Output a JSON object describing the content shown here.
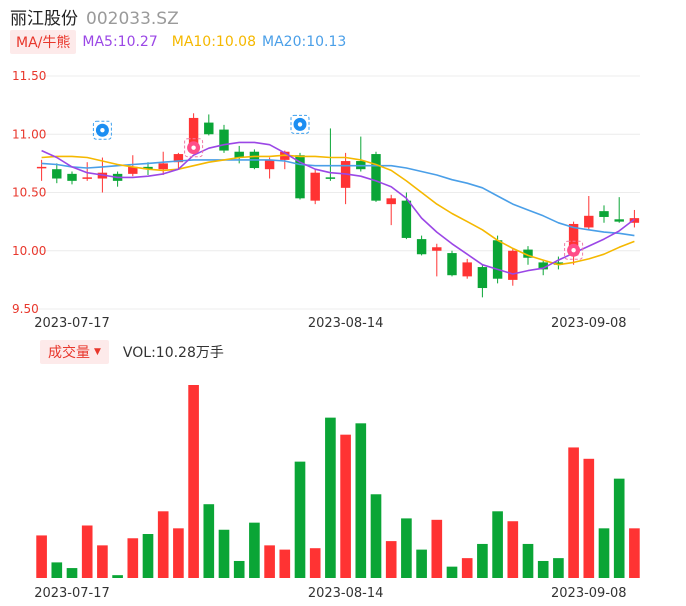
{
  "header": {
    "name": "丽江股份",
    "code": "002033.SZ"
  },
  "ma_legend": {
    "toggle": "MA/牛熊",
    "ma5": "MA5:10.27",
    "ma10": "MA10:10.08",
    "ma20": "MA20:10.13"
  },
  "volume_legend": {
    "label": "成交量",
    "vol": "VOL:10.28万手"
  },
  "colors": {
    "up": "#ff3333",
    "down": "#0aa536",
    "ma5": "#9b47e6",
    "ma10": "#f5b800",
    "ma20": "#4a9fe8"
  },
  "badges": [
    {
      "icon": "hand-coin-icon",
      "index": 4,
      "price": 10.88
    },
    {
      "icon": "ox-icon",
      "index": 10,
      "price": 10.73
    },
    {
      "icon": "hand-coin-icon",
      "index": 17,
      "price": 10.93
    },
    {
      "icon": "ox-icon",
      "index": 35,
      "price": 9.85
    }
  ],
  "chart_data": {
    "type": "candlestick",
    "y_ticks": [
      11.5,
      11.0,
      10.5,
      10.0,
      9.5
    ],
    "ylim": [
      9.5,
      11.5
    ],
    "x_ticks": [
      {
        "label": "2023-07-17",
        "index": 2
      },
      {
        "label": "2023-08-14",
        "index": 20
      },
      {
        "label": "2023-09-08",
        "index": 36
      }
    ],
    "candles": [
      {
        "o": 10.72,
        "h": 10.78,
        "l": 10.6,
        "c": 10.72
      },
      {
        "o": 10.7,
        "h": 10.75,
        "l": 10.58,
        "c": 10.62
      },
      {
        "o": 10.66,
        "h": 10.68,
        "l": 10.57,
        "c": 10.6
      },
      {
        "o": 10.63,
        "h": 10.76,
        "l": 10.6,
        "c": 10.63
      },
      {
        "o": 10.62,
        "h": 10.8,
        "l": 10.5,
        "c": 10.67
      },
      {
        "o": 10.66,
        "h": 10.68,
        "l": 10.55,
        "c": 10.6
      },
      {
        "o": 10.66,
        "h": 10.82,
        "l": 10.64,
        "c": 10.72
      },
      {
        "o": 10.72,
        "h": 10.76,
        "l": 10.65,
        "c": 10.7
      },
      {
        "o": 10.7,
        "h": 10.85,
        "l": 10.65,
        "c": 10.75
      },
      {
        "o": 10.76,
        "h": 10.84,
        "l": 10.7,
        "c": 10.83
      },
      {
        "o": 10.86,
        "h": 11.18,
        "l": 10.84,
        "c": 11.14
      },
      {
        "o": 11.1,
        "h": 11.17,
        "l": 10.99,
        "c": 11.0
      },
      {
        "o": 11.04,
        "h": 11.08,
        "l": 10.84,
        "c": 10.86
      },
      {
        "o": 10.85,
        "h": 10.9,
        "l": 10.75,
        "c": 10.8
      },
      {
        "o": 10.85,
        "h": 10.87,
        "l": 10.7,
        "c": 10.71
      },
      {
        "o": 10.7,
        "h": 10.8,
        "l": 10.62,
        "c": 10.78
      },
      {
        "o": 10.78,
        "h": 10.86,
        "l": 10.7,
        "c": 10.85
      },
      {
        "o": 10.82,
        "h": 10.84,
        "l": 10.44,
        "c": 10.45
      },
      {
        "o": 10.43,
        "h": 10.7,
        "l": 10.4,
        "c": 10.67
      },
      {
        "o": 10.63,
        "h": 11.05,
        "l": 10.6,
        "c": 10.62
      },
      {
        "o": 10.54,
        "h": 10.84,
        "l": 10.4,
        "c": 10.77
      },
      {
        "o": 10.77,
        "h": 10.98,
        "l": 10.68,
        "c": 10.7
      },
      {
        "o": 10.83,
        "h": 10.85,
        "l": 10.42,
        "c": 10.43
      },
      {
        "o": 10.4,
        "h": 10.48,
        "l": 10.22,
        "c": 10.45
      },
      {
        "o": 10.43,
        "h": 10.5,
        "l": 10.1,
        "c": 10.11
      },
      {
        "o": 10.1,
        "h": 10.13,
        "l": 9.96,
        "c": 9.97
      },
      {
        "o": 10.0,
        "h": 10.06,
        "l": 9.78,
        "c": 10.03
      },
      {
        "o": 9.98,
        "h": 10.0,
        "l": 9.78,
        "c": 9.79
      },
      {
        "o": 9.78,
        "h": 9.93,
        "l": 9.76,
        "c": 9.9
      },
      {
        "o": 9.86,
        "h": 9.88,
        "l": 9.6,
        "c": 9.68
      },
      {
        "o": 10.09,
        "h": 10.13,
        "l": 9.72,
        "c": 9.76
      },
      {
        "o": 9.75,
        "h": 10.02,
        "l": 9.7,
        "c": 10.0
      },
      {
        "o": 10.01,
        "h": 10.04,
        "l": 9.88,
        "c": 9.94
      },
      {
        "o": 9.9,
        "h": 9.92,
        "l": 9.79,
        "c": 9.84
      },
      {
        "o": 9.9,
        "h": 9.95,
        "l": 9.84,
        "c": 9.88
      },
      {
        "o": 9.96,
        "h": 10.25,
        "l": 9.88,
        "c": 10.23
      },
      {
        "o": 10.2,
        "h": 10.47,
        "l": 10.18,
        "c": 10.3
      },
      {
        "o": 10.34,
        "h": 10.39,
        "l": 10.24,
        "c": 10.29
      },
      {
        "o": 10.27,
        "h": 10.46,
        "l": 10.24,
        "c": 10.25
      },
      {
        "o": 10.24,
        "h": 10.35,
        "l": 10.2,
        "c": 10.28
      }
    ],
    "ma5": [
      10.86,
      10.8,
      10.72,
      10.67,
      10.65,
      10.63,
      10.63,
      10.64,
      10.66,
      10.7,
      10.82,
      10.88,
      10.91,
      10.93,
      10.93,
      10.91,
      10.84,
      10.76,
      10.7,
      10.67,
      10.66,
      10.64,
      10.6,
      10.55,
      10.45,
      10.28,
      10.16,
      10.06,
      9.97,
      9.88,
      9.84,
      9.8,
      9.83,
      9.85,
      9.92,
      9.98,
      10.04,
      10.1,
      10.17,
      10.27
    ],
    "ma10": [
      10.8,
      10.81,
      10.81,
      10.8,
      10.77,
      10.74,
      10.72,
      10.7,
      10.69,
      10.7,
      10.73,
      10.76,
      10.78,
      10.8,
      10.81,
      10.81,
      10.82,
      10.81,
      10.81,
      10.8,
      10.8,
      10.78,
      10.74,
      10.69,
      10.6,
      10.5,
      10.4,
      10.32,
      10.25,
      10.18,
      10.09,
      10.02,
      9.96,
      9.92,
      9.88,
      9.9,
      9.93,
      9.97,
      10.03,
      10.08
    ],
    "ma20": [
      10.75,
      10.74,
      10.72,
      10.71,
      10.72,
      10.73,
      10.74,
      10.75,
      10.76,
      10.77,
      10.78,
      10.78,
      10.78,
      10.78,
      10.78,
      10.78,
      10.77,
      10.74,
      10.73,
      10.73,
      10.73,
      10.73,
      10.73,
      10.73,
      10.71,
      10.68,
      10.65,
      10.61,
      10.58,
      10.54,
      10.47,
      10.4,
      10.35,
      10.3,
      10.24,
      10.2,
      10.18,
      10.16,
      10.15,
      10.13
    ],
    "volume": [
      30,
      11,
      7,
      37,
      23,
      2,
      28,
      31,
      47,
      35,
      136,
      52,
      34,
      12,
      39,
      23,
      20,
      82,
      21,
      113,
      101,
      109,
      59,
      26,
      42,
      20,
      41,
      8,
      14,
      24,
      47,
      40,
      24,
      12,
      14,
      92,
      84,
      35,
      70,
      35
    ],
    "volume_max": 136
  }
}
